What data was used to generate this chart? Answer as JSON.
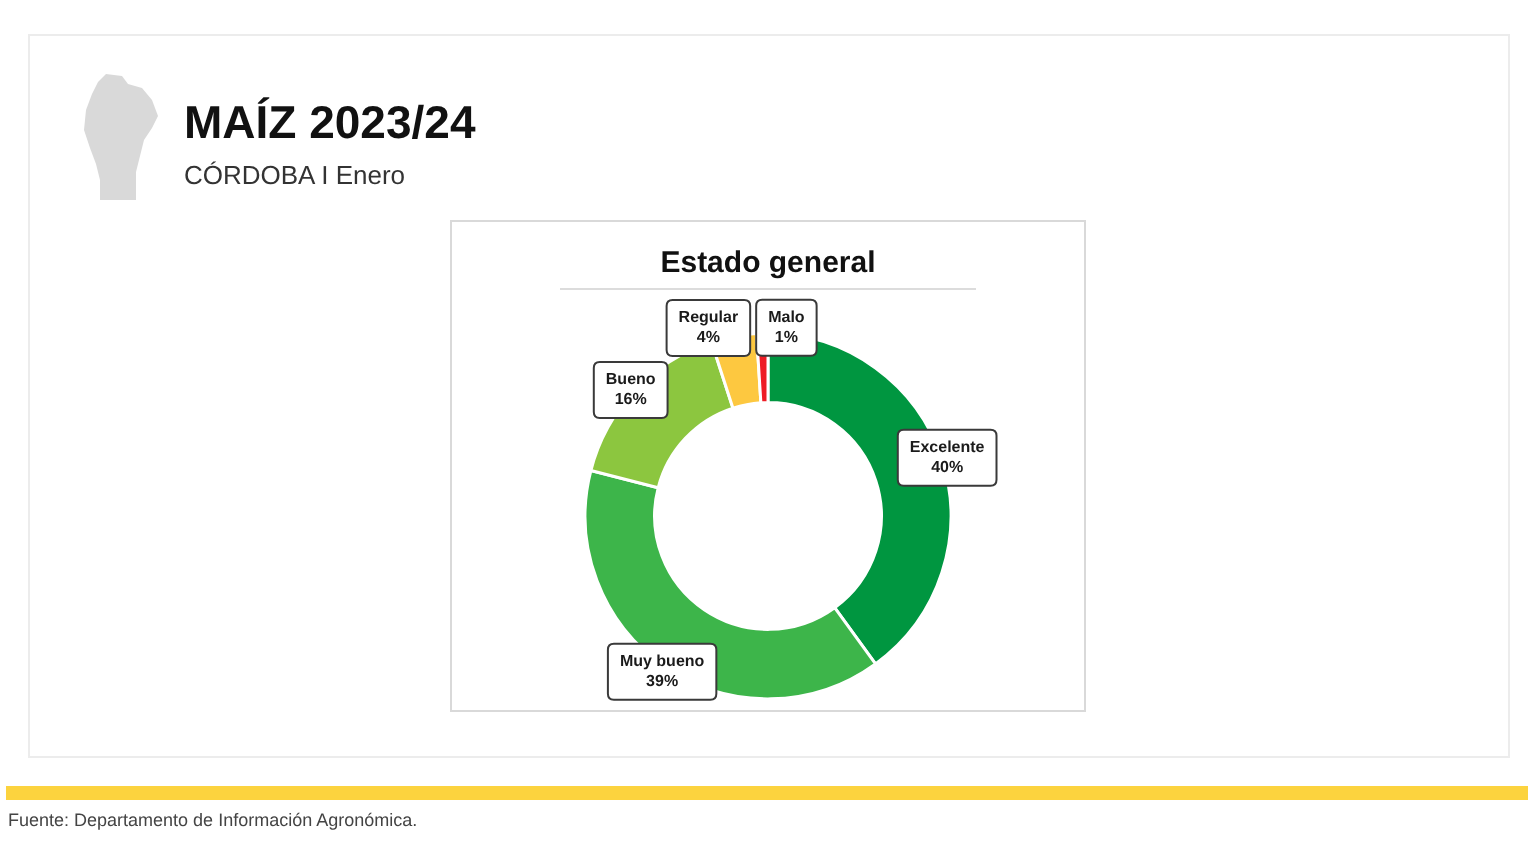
{
  "chart_data": {
    "type": "donut",
    "title": "MAÍZ 2023/24",
    "subtitle": "CÓRDOBA I Enero",
    "annotations": [
      "Estado general",
      "Fuente: Departamento de Información Agronómica."
    ],
    "categories": [
      "Excelente",
      "Muy bueno",
      "Bueno",
      "Regular",
      "Malo"
    ],
    "values": [
      40,
      39,
      16,
      4,
      1
    ],
    "value_labels": [
      "40%",
      "39%",
      "16%",
      "4%",
      "1%"
    ],
    "colors": [
      "#009640",
      "#3db54a",
      "#8cc63f",
      "#fdc840",
      "#ee1c25"
    ]
  }
}
